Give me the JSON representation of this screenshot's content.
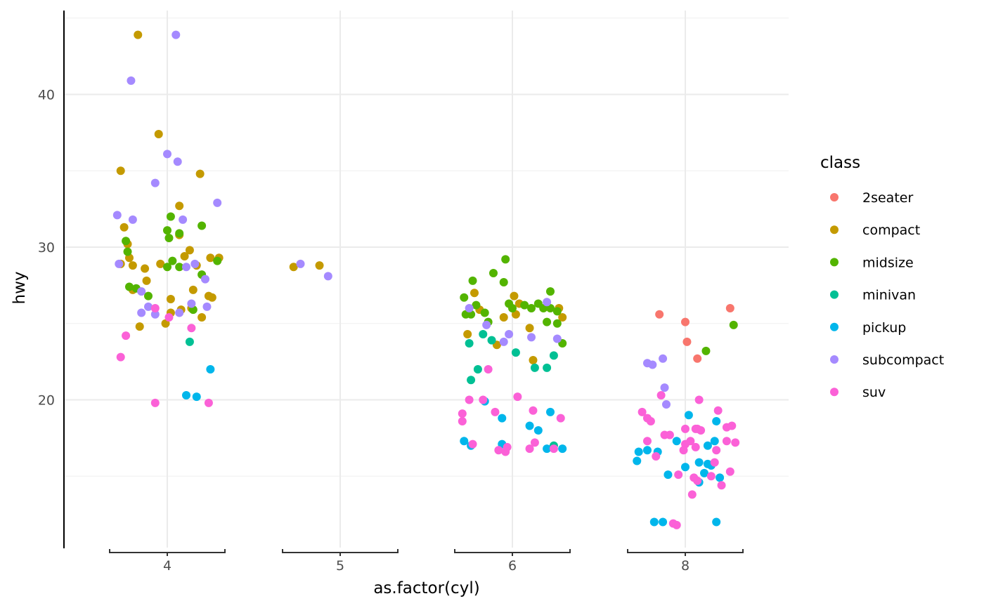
{
  "chart_data": {
    "type": "scatter",
    "title": "",
    "xlabel": "as.factor(cyl)",
    "ylabel": "hwy",
    "x_categories": [
      "4",
      "5",
      "6",
      "8"
    ],
    "ylim": [
      10.3,
      45.5
    ],
    "y_major_ticks": [
      20,
      30,
      40
    ],
    "y_minor_ticks": [
      15,
      25,
      35,
      45
    ],
    "grid": true,
    "legend": {
      "title": "class",
      "placement": "right"
    },
    "point_format": [
      "cyl",
      "horizontal_jitter_in_category_units",
      "hwy"
    ],
    "series": [
      {
        "name": "2seater",
        "color": "#F8766D",
        "points": [
          [
            "8",
            -0.15,
            25.6
          ],
          [
            "8",
            0,
            25.1
          ],
          [
            "8",
            0.26,
            26.0
          ],
          [
            "8",
            0.01,
            23.8
          ],
          [
            "8",
            0.07,
            22.7
          ]
        ]
      },
      {
        "name": "compact",
        "color": "#C49A00",
        "points": [
          [
            "4",
            -0.17,
            43.9
          ],
          [
            "4",
            -0.05,
            37.4
          ],
          [
            "4",
            -0.27,
            35.0
          ],
          [
            "4",
            0.19,
            34.8
          ],
          [
            "4",
            0.07,
            32.7
          ],
          [
            "4",
            -0.25,
            31.3
          ],
          [
            "4",
            -0.23,
            30.2
          ],
          [
            "4",
            -0.22,
            29.3
          ],
          [
            "4",
            -0.2,
            28.8
          ],
          [
            "4",
            -0.13,
            28.6
          ],
          [
            "4",
            -0.04,
            28.9
          ],
          [
            "4",
            0.13,
            29.8
          ],
          [
            "4",
            0.07,
            30.8
          ],
          [
            "4",
            0.02,
            26.6
          ],
          [
            "4",
            -0.01,
            25.0
          ],
          [
            "4",
            0.02,
            25.7
          ],
          [
            "4",
            -0.12,
            27.8
          ],
          [
            "4",
            -0.27,
            28.9
          ],
          [
            "4",
            -0.2,
            27.2
          ],
          [
            "4",
            -0.16,
            24.8
          ],
          [
            "4",
            0.15,
            27.2
          ],
          [
            "4",
            0.17,
            28.8
          ],
          [
            "4",
            0.08,
            25.9
          ],
          [
            "4",
            0.25,
            29.3
          ],
          [
            "4",
            0.3,
            29.3
          ],
          [
            "4",
            0.24,
            26.8
          ],
          [
            "4",
            0.26,
            26.7
          ],
          [
            "4",
            0.2,
            25.4
          ],
          [
            "4",
            0.14,
            26.0
          ],
          [
            "4",
            0.1,
            29.4
          ],
          [
            "5",
            -0.27,
            28.7
          ],
          [
            "5",
            -0.12,
            28.8
          ],
          [
            "6",
            -0.22,
            27.0
          ],
          [
            "6",
            0.01,
            26.8
          ],
          [
            "6",
            -0.19,
            25.9
          ],
          [
            "6",
            0.04,
            26.3
          ],
          [
            "6",
            0.02,
            25.6
          ],
          [
            "6",
            -0.05,
            25.4
          ],
          [
            "6",
            0.1,
            24.7
          ],
          [
            "6",
            -0.26,
            24.3
          ],
          [
            "6",
            -0.09,
            23.6
          ],
          [
            "6",
            0.12,
            22.6
          ],
          [
            "6",
            0.27,
            26.0
          ],
          [
            "6",
            0.29,
            25.4
          ]
        ]
      },
      {
        "name": "midsize",
        "color": "#53B400",
        "points": [
          [
            "4",
            0.02,
            32.0
          ],
          [
            "4",
            0,
            31.1
          ],
          [
            "4",
            0.01,
            30.6
          ],
          [
            "4",
            0.07,
            30.9
          ],
          [
            "4",
            0.2,
            31.4
          ],
          [
            "4",
            -0.24,
            30.4
          ],
          [
            "4",
            -0.23,
            29.7
          ],
          [
            "4",
            -0.22,
            27.4
          ],
          [
            "4",
            -0.18,
            27.3
          ],
          [
            "4",
            -0.11,
            26.8
          ],
          [
            "4",
            0.03,
            29.1
          ],
          [
            "4",
            0,
            28.7
          ],
          [
            "4",
            0.07,
            28.7
          ],
          [
            "4",
            0.2,
            28.2
          ],
          [
            "4",
            0.29,
            29.1
          ],
          [
            "4",
            0.15,
            25.9
          ],
          [
            "6",
            -0.04,
            29.2
          ],
          [
            "6",
            -0.11,
            28.3
          ],
          [
            "6",
            -0.23,
            27.8
          ],
          [
            "6",
            -0.05,
            27.7
          ],
          [
            "6",
            -0.28,
            26.7
          ],
          [
            "6",
            0.22,
            27.1
          ],
          [
            "6",
            -0.21,
            26.2
          ],
          [
            "6",
            -0.02,
            26.3
          ],
          [
            "6",
            0,
            26.0
          ],
          [
            "6",
            0.07,
            26.2
          ],
          [
            "6",
            0.11,
            26.0
          ],
          [
            "6",
            0.15,
            26.3
          ],
          [
            "6",
            0.18,
            26.0
          ],
          [
            "6",
            0.22,
            26.0
          ],
          [
            "6",
            0.26,
            25.8
          ],
          [
            "6",
            -0.27,
            25.6
          ],
          [
            "6",
            -0.24,
            25.6
          ],
          [
            "6",
            -0.16,
            25.7
          ],
          [
            "6",
            -0.14,
            25.1
          ],
          [
            "6",
            0.2,
            25.1
          ],
          [
            "6",
            0.26,
            25.0
          ],
          [
            "6",
            0.29,
            23.7
          ],
          [
            "8",
            0.28,
            24.9
          ],
          [
            "8",
            0.12,
            23.2
          ]
        ]
      },
      {
        "name": "minivan",
        "color": "#00C094",
        "points": [
          [
            "4",
            0.13,
            23.8
          ],
          [
            "6",
            -0.25,
            23.7
          ],
          [
            "6",
            -0.17,
            24.3
          ],
          [
            "6",
            -0.12,
            23.9
          ],
          [
            "6",
            0.02,
            23.1
          ],
          [
            "6",
            0.24,
            22.9
          ],
          [
            "6",
            0.13,
            22.1
          ],
          [
            "6",
            0.2,
            22.1
          ],
          [
            "6",
            -0.2,
            22.0
          ],
          [
            "6",
            -0.24,
            21.3
          ],
          [
            "6",
            0.24,
            17.0
          ]
        ]
      },
      {
        "name": "pickup",
        "color": "#00B6EB",
        "points": [
          [
            "4",
            0.25,
            22.0
          ],
          [
            "4",
            0.11,
            20.3
          ],
          [
            "4",
            0.17,
            20.2
          ],
          [
            "6",
            -0.16,
            19.9
          ],
          [
            "6",
            -0.06,
            18.8
          ],
          [
            "6",
            0.1,
            18.3
          ],
          [
            "6",
            0.15,
            18.0
          ],
          [
            "6",
            0.22,
            19.2
          ],
          [
            "6",
            -0.28,
            17.3
          ],
          [
            "6",
            -0.24,
            17.0
          ],
          [
            "6",
            -0.06,
            17.1
          ],
          [
            "6",
            0.2,
            16.8
          ],
          [
            "6",
            0.29,
            16.8
          ],
          [
            "8",
            0.02,
            19.0
          ],
          [
            "8",
            0.18,
            18.6
          ],
          [
            "8",
            -0.05,
            17.3
          ],
          [
            "8",
            0.13,
            17.0
          ],
          [
            "8",
            0.17,
            17.3
          ],
          [
            "8",
            -0.27,
            16.6
          ],
          [
            "8",
            -0.22,
            16.7
          ],
          [
            "8",
            -0.16,
            16.6
          ],
          [
            "8",
            -0.28,
            16.0
          ],
          [
            "8",
            0.08,
            15.9
          ],
          [
            "8",
            0.13,
            15.8
          ],
          [
            "8",
            0.15,
            15.7
          ],
          [
            "8",
            0,
            15.6
          ],
          [
            "8",
            0.11,
            15.2
          ],
          [
            "8",
            -0.1,
            15.1
          ],
          [
            "8",
            0.2,
            14.9
          ],
          [
            "8",
            0.08,
            14.6
          ],
          [
            "8",
            -0.18,
            12.0
          ],
          [
            "8",
            -0.13,
            12.0
          ],
          [
            "8",
            0.18,
            12.0
          ]
        ]
      },
      {
        "name": "subcompact",
        "color": "#A58AFF",
        "points": [
          [
            "4",
            0.05,
            43.9
          ],
          [
            "4",
            -0.21,
            40.9
          ],
          [
            "4",
            0,
            36.1
          ],
          [
            "4",
            0.06,
            35.6
          ],
          [
            "4",
            -0.07,
            34.2
          ],
          [
            "4",
            0.29,
            32.9
          ],
          [
            "4",
            -0.29,
            32.1
          ],
          [
            "4",
            -0.2,
            31.8
          ],
          [
            "4",
            0.09,
            31.8
          ],
          [
            "4",
            -0.28,
            28.9
          ],
          [
            "4",
            0.11,
            28.7
          ],
          [
            "4",
            0.16,
            28.9
          ],
          [
            "4",
            -0.15,
            27.1
          ],
          [
            "4",
            -0.11,
            26.1
          ],
          [
            "4",
            -0.15,
            25.7
          ],
          [
            "4",
            -0.07,
            25.6
          ],
          [
            "4",
            0.07,
            25.7
          ],
          [
            "4",
            0.14,
            26.3
          ],
          [
            "4",
            0.23,
            26.1
          ],
          [
            "4",
            0.22,
            27.9
          ],
          [
            "5",
            -0.23,
            28.9
          ],
          [
            "5",
            -0.07,
            28.1
          ],
          [
            "6",
            -0.25,
            26.0
          ],
          [
            "6",
            -0.15,
            24.9
          ],
          [
            "6",
            -0.02,
            24.3
          ],
          [
            "6",
            -0.05,
            23.8
          ],
          [
            "6",
            0.11,
            24.1
          ],
          [
            "6",
            0.2,
            26.4
          ],
          [
            "6",
            0.26,
            24.0
          ],
          [
            "8",
            -0.22,
            22.4
          ],
          [
            "8",
            -0.19,
            22.3
          ],
          [
            "8",
            -0.13,
            22.7
          ],
          [
            "8",
            -0.12,
            20.8
          ],
          [
            "8",
            -0.11,
            19.7
          ]
        ]
      },
      {
        "name": "suv",
        "color": "#FB61D7",
        "points": [
          [
            "4",
            -0.24,
            24.2
          ],
          [
            "4",
            -0.27,
            22.8
          ],
          [
            "4",
            0.01,
            25.4
          ],
          [
            "4",
            0.14,
            24.7
          ],
          [
            "4",
            -0.07,
            19.8
          ],
          [
            "4",
            0.24,
            19.8
          ],
          [
            "4",
            -0.07,
            26.0
          ],
          [
            "6",
            -0.14,
            22.0
          ],
          [
            "6",
            -0.25,
            20.0
          ],
          [
            "6",
            0.03,
            20.2
          ],
          [
            "6",
            -0.29,
            19.1
          ],
          [
            "6",
            -0.29,
            18.6
          ],
          [
            "6",
            -0.1,
            19.2
          ],
          [
            "6",
            0.12,
            19.3
          ],
          [
            "6",
            0.28,
            18.8
          ],
          [
            "6",
            -0.23,
            17.1
          ],
          [
            "6",
            0.13,
            17.2
          ],
          [
            "6",
            -0.08,
            16.7
          ],
          [
            "6",
            -0.04,
            16.6
          ],
          [
            "6",
            -0.03,
            16.9
          ],
          [
            "6",
            0.1,
            16.8
          ],
          [
            "6",
            0.24,
            16.8
          ],
          [
            "6",
            -0.17,
            20.0
          ],
          [
            "8",
            -0.14,
            20.3
          ],
          [
            "8",
            0.08,
            20.0
          ],
          [
            "8",
            -0.25,
            19.2
          ],
          [
            "8",
            -0.22,
            18.8
          ],
          [
            "8",
            -0.2,
            18.6
          ],
          [
            "8",
            0.19,
            19.3
          ],
          [
            "8",
            0,
            18.1
          ],
          [
            "8",
            0.06,
            18.1
          ],
          [
            "8",
            0.09,
            18.0
          ],
          [
            "8",
            0.07,
            18.1
          ],
          [
            "8",
            -0.12,
            17.7
          ],
          [
            "8",
            -0.09,
            17.7
          ],
          [
            "8",
            0.24,
            18.2
          ],
          [
            "8",
            0.27,
            18.3
          ],
          [
            "8",
            -0.22,
            17.3
          ],
          [
            "8",
            0.03,
            17.3
          ],
          [
            "8",
            0,
            17.1
          ],
          [
            "8",
            0.24,
            17.3
          ],
          [
            "8",
            0.29,
            17.2
          ],
          [
            "8",
            -0.01,
            16.7
          ],
          [
            "8",
            0.06,
            16.9
          ],
          [
            "8",
            0.18,
            16.7
          ],
          [
            "8",
            -0.17,
            16.3
          ],
          [
            "8",
            0.17,
            15.9
          ],
          [
            "8",
            -0.04,
            15.1
          ],
          [
            "8",
            0.05,
            14.9
          ],
          [
            "8",
            0.07,
            14.7
          ],
          [
            "8",
            0.15,
            15.0
          ],
          [
            "8",
            0.26,
            15.3
          ],
          [
            "8",
            0.21,
            14.4
          ],
          [
            "8",
            0.04,
            13.8
          ],
          [
            "8",
            -0.07,
            11.9
          ],
          [
            "8",
            -0.05,
            11.8
          ]
        ]
      }
    ]
  }
}
